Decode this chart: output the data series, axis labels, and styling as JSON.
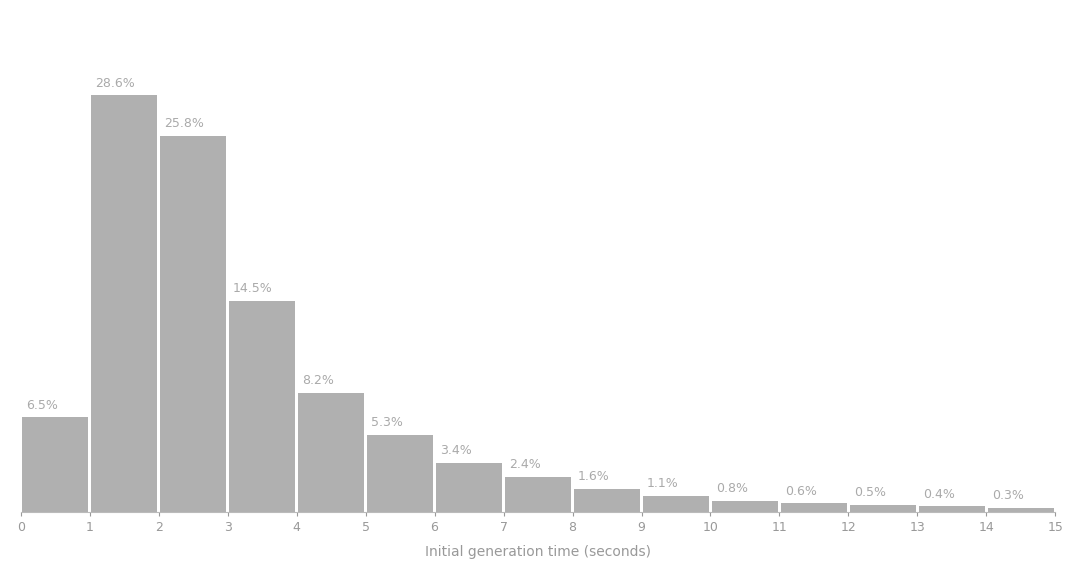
{
  "bin_edges": [
    0,
    1,
    2,
    3,
    4,
    5,
    6,
    7,
    8,
    9,
    10,
    11,
    12,
    13,
    14,
    15
  ],
  "values": [
    6.5,
    28.6,
    25.8,
    14.5,
    8.2,
    5.3,
    3.4,
    2.4,
    1.6,
    1.1,
    0.8,
    0.6,
    0.5,
    0.4,
    0.3
  ],
  "bar_color": "#b0b0b0",
  "bar_edge_color": "#ffffff",
  "labels": [
    "6.5%",
    "28.6%",
    "25.8%",
    "14.5%",
    "8.2%",
    "5.3%",
    "3.4%",
    "2.4%",
    "1.6%",
    "1.1%",
    "0.8%",
    "0.6%",
    "0.5%",
    "0.4%",
    "0.3%"
  ],
  "xlabel": "Initial generation time (seconds)",
  "ylim": [
    0,
    34
  ],
  "xticks": [
    0,
    1,
    2,
    3,
    4,
    5,
    6,
    7,
    8,
    9,
    10,
    11,
    12,
    13,
    14,
    15
  ],
  "background_color": "#ffffff",
  "label_color": "#aaaaaa",
  "label_fontsize": 9,
  "xlabel_fontsize": 10,
  "tick_color": "#999999",
  "spine_color": "#bbbbbb"
}
